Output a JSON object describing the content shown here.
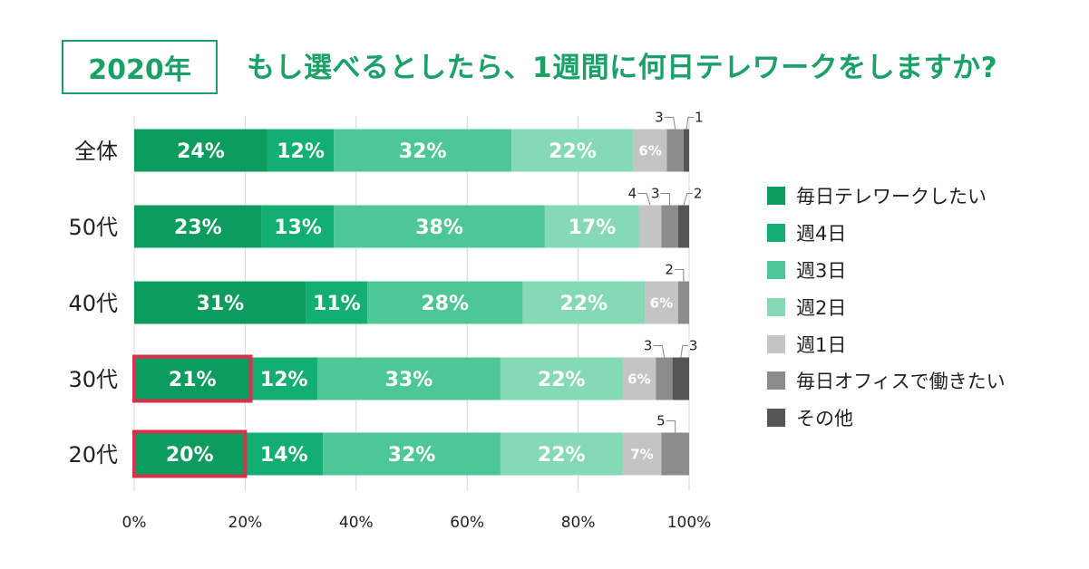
{
  "header": {
    "year_label": "2020年",
    "title": "もし選べるとしたら、1週間に何日テレワークをしますか?"
  },
  "colors": {
    "title_green": "#1aa167",
    "highlight": "#d9304b"
  },
  "chart_data": {
    "type": "bar",
    "orientation": "horizontal",
    "stacked": true,
    "categories": [
      "全体",
      "50代",
      "40代",
      "30代",
      "20代"
    ],
    "xlim": [
      0,
      100
    ],
    "x_ticks": [
      "0%",
      "20%",
      "40%",
      "60%",
      "80%",
      "100%"
    ],
    "grid": true,
    "legend_position": "right",
    "highlighted": [
      {
        "category": "30代",
        "series": "毎日テレワークしたい"
      },
      {
        "category": "20代",
        "series": "毎日テレワークしたい"
      }
    ],
    "series": [
      {
        "name": "毎日テレワークしたい",
        "color": "#0e9c5e",
        "values": [
          24,
          23,
          31,
          21,
          20
        ],
        "labels": [
          "24%",
          "23%",
          "31%",
          "21%",
          "20%"
        ]
      },
      {
        "name": "週4日",
        "color": "#13ae72",
        "values": [
          12,
          13,
          11,
          12,
          14
        ],
        "labels": [
          "12%",
          "13%",
          "11%",
          "12%",
          "14%"
        ]
      },
      {
        "name": "週3日",
        "color": "#4cc795",
        "values": [
          32,
          38,
          28,
          33,
          32
        ],
        "labels": [
          "32%",
          "38%",
          "28%",
          "33%",
          "32%"
        ]
      },
      {
        "name": "週2日",
        "color": "#85d9b5",
        "values": [
          22,
          17,
          22,
          22,
          22
        ],
        "labels": [
          "22%",
          "17%",
          "22%",
          "22%",
          "22%"
        ]
      },
      {
        "name": "週1日",
        "color": "#c4c4c4",
        "values": [
          6,
          4,
          6,
          6,
          7
        ],
        "labels": [
          "6%",
          "4",
          "6%",
          "6%",
          "7%"
        ]
      },
      {
        "name": "毎日オフィスで働きたい",
        "color": "#8c8c8c",
        "values": [
          3,
          3,
          2,
          3,
          5
        ],
        "labels": [
          "3",
          "3",
          "2",
          "3",
          "5"
        ]
      },
      {
        "name": "その他",
        "color": "#555555",
        "values": [
          1,
          2,
          0,
          3,
          0
        ],
        "labels": [
          "1",
          "2",
          "",
          "3",
          ""
        ]
      }
    ]
  }
}
